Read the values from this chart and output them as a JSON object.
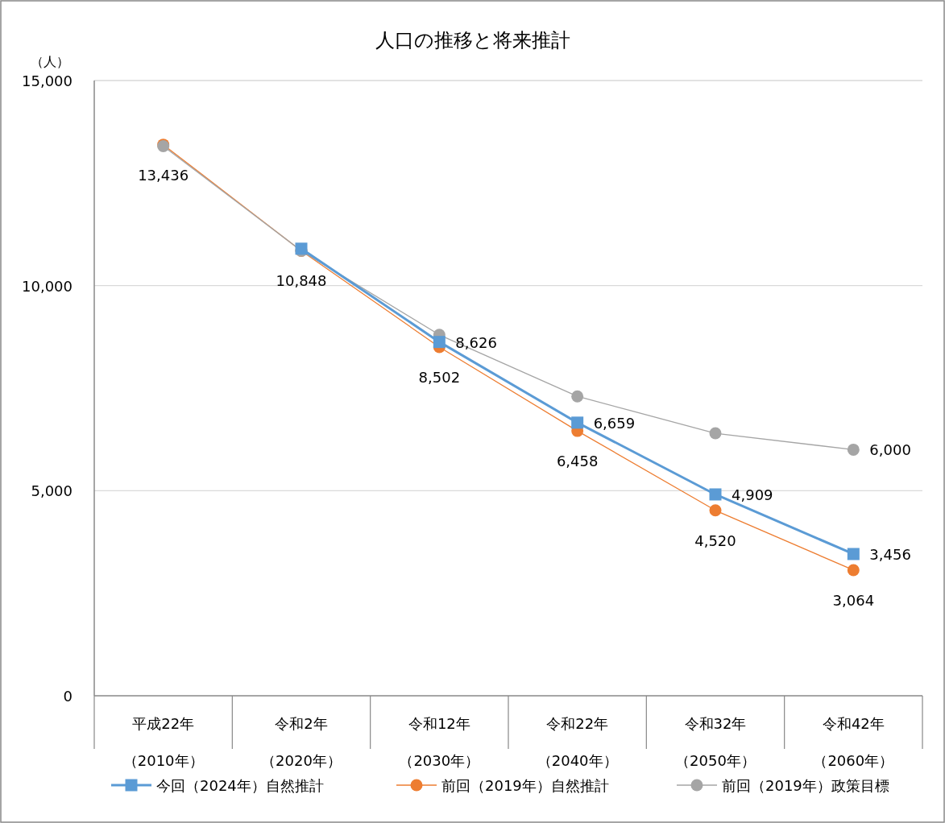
{
  "chart_data": {
    "type": "line",
    "title": "人口の推移と将来推計",
    "ylabel": "（人）",
    "categories": [
      "平成22年（2010年）",
      "令和2年（2020年）",
      "令和12年（2030年）",
      "令和22年（2040年）",
      "令和32年（2050年）",
      "令和42年（2060年）"
    ],
    "series": [
      {
        "name": "今回（2024年）自然推計",
        "color": "#5b9bd5",
        "marker": "square",
        "values": [
          null,
          10900,
          8626,
          6659,
          4909,
          3456
        ],
        "value_labels": [
          null,
          null,
          "8,626",
          "6,659",
          "4,909",
          "3,456"
        ]
      },
      {
        "name": "前回（2019年）自然推計",
        "color": "#ed7d31",
        "marker": "circle",
        "values": [
          13436,
          10848,
          8502,
          6458,
          4520,
          3064
        ],
        "value_labels": [
          "13,436",
          "10,848",
          "8,502",
          "6,458",
          "4,520",
          "3,064"
        ]
      },
      {
        "name": "前回（2019年）政策目標",
        "color": "#a5a5a5",
        "marker": "circle",
        "values": [
          13400,
          10850,
          8800,
          7300,
          6400,
          6000
        ],
        "value_labels": [
          null,
          null,
          null,
          null,
          null,
          "6,000"
        ]
      }
    ],
    "ylim": [
      0,
      15000
    ],
    "yticks": [
      {
        "value": 0,
        "label": "0"
      },
      {
        "value": 5000,
        "label": "5,000"
      },
      {
        "value": 10000,
        "label": "10,000"
      },
      {
        "value": 15000,
        "label": "15,000"
      }
    ],
    "grid": "y",
    "legend": "bottom"
  }
}
